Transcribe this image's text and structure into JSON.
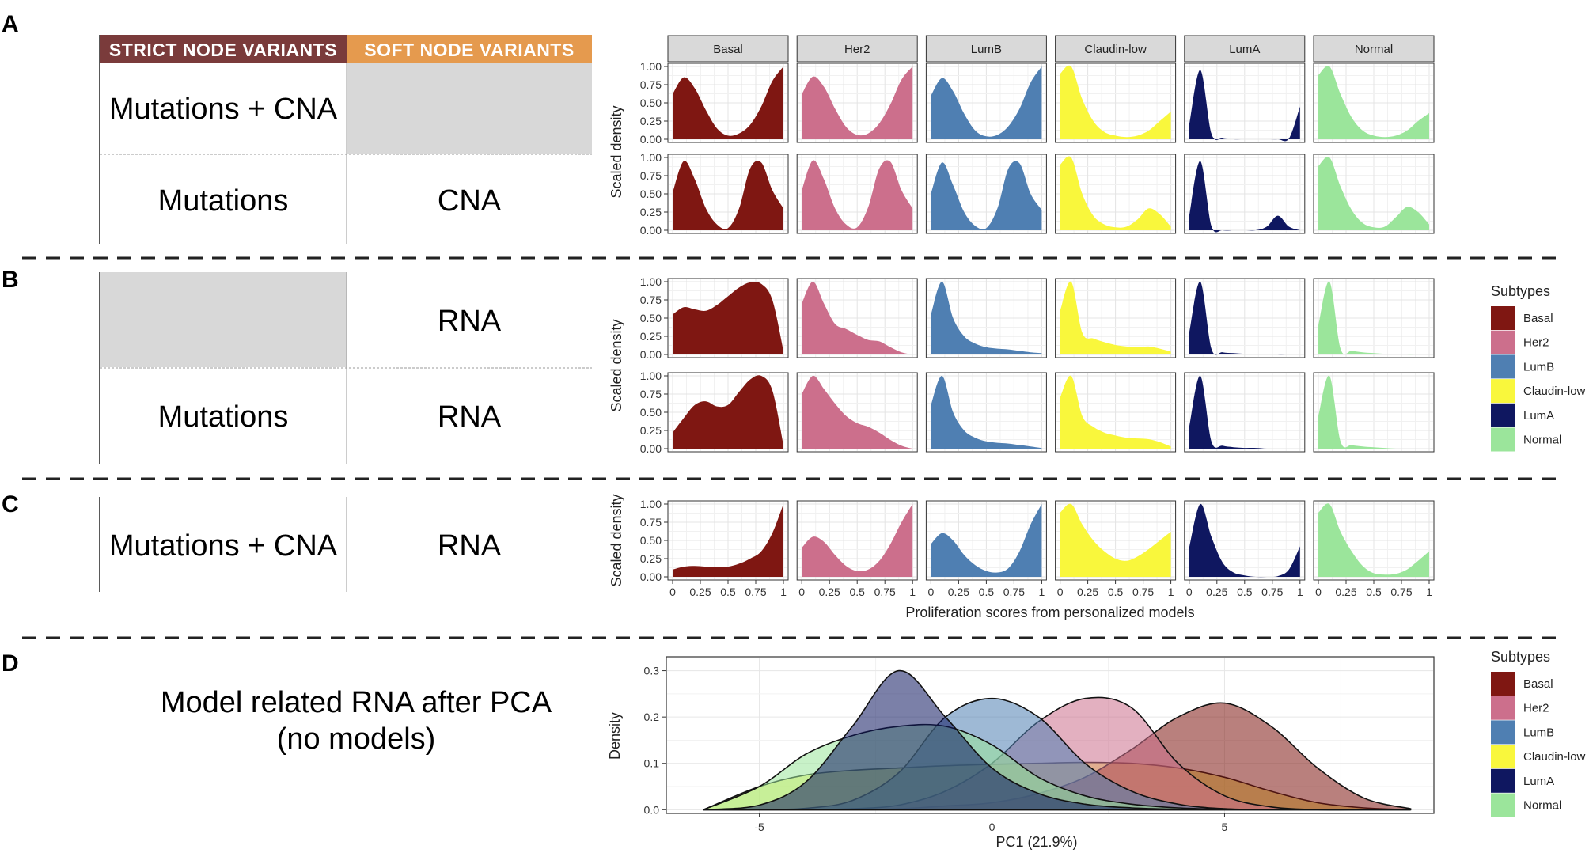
{
  "panels": {
    "A": "A",
    "B": "B",
    "C": "C",
    "D": "D"
  },
  "table": {
    "strict_header": "STRICT NODE VARIANTS",
    "soft_header": "SOFT NODE VARIANTS",
    "a_row1_strict": "Mutations + CNA",
    "a_row2_strict": "Mutations",
    "a_row2_soft": "CNA",
    "b_row1_soft": "RNA",
    "b_row2_strict": "Mutations",
    "b_row2_soft": "RNA",
    "c_row1_strict": "Mutations + CNA",
    "c_row1_soft": "RNA",
    "d_line1": "Model related RNA after PCA",
    "d_line2": "(no models)"
  },
  "colors": {
    "Basal": "#7f1712",
    "Her2": "#cc6f8c",
    "LumB": "#4f7fb2",
    "Claudin-low": "#f9f73c",
    "LumA": "#0f1760",
    "Normal": "#9be59b",
    "strict_header_bg": "#7a3b3b",
    "soft_header_bg": "#e59a4e",
    "gray_cell": "#d8d8d8"
  },
  "chart_data": [
    {
      "type": "area",
      "id": "facet-grid",
      "title": "",
      "subtypes": [
        "Basal",
        "Her2",
        "LumB",
        "Claudin-low",
        "LumA",
        "Normal"
      ],
      "ylabel": "Scaled density",
      "xlabel": "Proliferation scores from personalized models",
      "xlim": [
        0,
        1
      ],
      "ylim": [
        0,
        1
      ],
      "xticks": [
        "0",
        "0.25",
        "0.5",
        "0.75",
        "1"
      ],
      "yticks": [
        "0.00",
        "0.25",
        "0.50",
        "0.75",
        "1.00"
      ],
      "rows": [
        {
          "panel": "A",
          "x": [
            0,
            0.1,
            0.2,
            0.3,
            0.4,
            0.5,
            0.6,
            0.7,
            0.8,
            0.9,
            1.0
          ],
          "series": {
            "Basal": [
              0.62,
              0.85,
              0.7,
              0.4,
              0.15,
              0.05,
              0.08,
              0.2,
              0.45,
              0.8,
              1.0
            ],
            "Her2": [
              0.62,
              0.86,
              0.72,
              0.42,
              0.17,
              0.06,
              0.08,
              0.22,
              0.48,
              0.82,
              1.0
            ],
            "LumB": [
              0.6,
              0.84,
              0.66,
              0.35,
              0.12,
              0.04,
              0.06,
              0.18,
              0.42,
              0.78,
              1.0
            ],
            "Claudin-low": [
              0.9,
              1.0,
              0.55,
              0.25,
              0.1,
              0.05,
              0.03,
              0.05,
              0.12,
              0.25,
              0.38
            ],
            "LumA": [
              0.2,
              0.95,
              0.08,
              0.01,
              0.0,
              0.0,
              0.0,
              0.0,
              0.0,
              0.01,
              0.45
            ],
            "Normal": [
              0.88,
              1.0,
              0.62,
              0.3,
              0.12,
              0.05,
              0.03,
              0.05,
              0.12,
              0.25,
              0.36
            ]
          }
        },
        {
          "panel": "A",
          "x": [
            0,
            0.1,
            0.2,
            0.3,
            0.4,
            0.5,
            0.6,
            0.7,
            0.8,
            0.9,
            1.0
          ],
          "series": {
            "Basal": [
              0.52,
              0.95,
              0.7,
              0.3,
              0.08,
              0.03,
              0.3,
              0.85,
              0.93,
              0.55,
              0.3
            ],
            "Her2": [
              0.55,
              0.96,
              0.7,
              0.3,
              0.08,
              0.04,
              0.32,
              0.85,
              0.94,
              0.55,
              0.3
            ],
            "LumB": [
              0.5,
              0.93,
              0.62,
              0.25,
              0.06,
              0.03,
              0.3,
              0.85,
              0.92,
              0.5,
              0.28
            ],
            "Claudin-low": [
              0.9,
              1.0,
              0.5,
              0.2,
              0.08,
              0.04,
              0.05,
              0.15,
              0.3,
              0.22,
              0.05
            ],
            "LumA": [
              0.2,
              0.95,
              0.06,
              0.0,
              0.0,
              0.0,
              0.0,
              0.05,
              0.2,
              0.05,
              0.0
            ],
            "Normal": [
              0.88,
              1.0,
              0.6,
              0.28,
              0.1,
              0.04,
              0.05,
              0.18,
              0.32,
              0.25,
              0.08
            ]
          }
        },
        {
          "panel": "B",
          "x": [
            0,
            0.1,
            0.2,
            0.3,
            0.4,
            0.5,
            0.6,
            0.7,
            0.8,
            0.9,
            1.0
          ],
          "series": {
            "Basal": [
              0.55,
              0.65,
              0.62,
              0.6,
              0.68,
              0.8,
              0.92,
              0.99,
              0.97,
              0.75,
              0.05
            ],
            "Her2": [
              0.7,
              1.0,
              0.7,
              0.42,
              0.35,
              0.27,
              0.2,
              0.18,
              0.1,
              0.03,
              0.0
            ],
            "LumB": [
              0.55,
              1.0,
              0.5,
              0.25,
              0.15,
              0.1,
              0.08,
              0.07,
              0.05,
              0.03,
              0.02
            ],
            "Claudin-low": [
              0.6,
              1.0,
              0.3,
              0.22,
              0.17,
              0.13,
              0.11,
              0.1,
              0.11,
              0.08,
              0.04
            ],
            "LumA": [
              0.3,
              1.0,
              0.08,
              0.03,
              0.02,
              0.01,
              0.01,
              0.01,
              0.0,
              0.0,
              0.0
            ],
            "Normal": [
              0.4,
              1.0,
              0.08,
              0.05,
              0.03,
              0.02,
              0.01,
              0.01,
              0.0,
              0.0,
              0.0
            ]
          }
        },
        {
          "panel": "B",
          "x": [
            0,
            0.1,
            0.2,
            0.3,
            0.4,
            0.5,
            0.6,
            0.7,
            0.8,
            0.9,
            1.0
          ],
          "series": {
            "Basal": [
              0.22,
              0.42,
              0.6,
              0.65,
              0.58,
              0.6,
              0.78,
              0.95,
              1.0,
              0.8,
              0.05
            ],
            "Her2": [
              0.75,
              1.0,
              0.82,
              0.62,
              0.45,
              0.35,
              0.3,
              0.22,
              0.12,
              0.04,
              0.0
            ],
            "LumB": [
              0.6,
              1.0,
              0.5,
              0.25,
              0.15,
              0.1,
              0.08,
              0.07,
              0.05,
              0.03,
              0.01
            ],
            "Claudin-low": [
              0.7,
              1.0,
              0.45,
              0.3,
              0.22,
              0.18,
              0.15,
              0.14,
              0.13,
              0.09,
              0.03
            ],
            "LumA": [
              0.3,
              1.0,
              0.1,
              0.04,
              0.02,
              0.01,
              0.01,
              0.0,
              0.0,
              0.0,
              0.0
            ],
            "Normal": [
              0.45,
              1.0,
              0.1,
              0.05,
              0.03,
              0.02,
              0.01,
              0.0,
              0.0,
              0.0,
              0.0
            ]
          }
        },
        {
          "panel": "C",
          "x": [
            0,
            0.1,
            0.2,
            0.3,
            0.4,
            0.5,
            0.6,
            0.7,
            0.8,
            0.9,
            1.0
          ],
          "series": {
            "Basal": [
              0.1,
              0.14,
              0.15,
              0.14,
              0.13,
              0.14,
              0.18,
              0.25,
              0.35,
              0.6,
              1.0
            ],
            "Her2": [
              0.4,
              0.55,
              0.48,
              0.3,
              0.15,
              0.08,
              0.1,
              0.22,
              0.45,
              0.75,
              1.0
            ],
            "LumB": [
              0.45,
              0.6,
              0.5,
              0.3,
              0.16,
              0.08,
              0.06,
              0.12,
              0.35,
              0.72,
              1.0
            ],
            "Claudin-low": [
              0.88,
              1.0,
              0.72,
              0.5,
              0.35,
              0.25,
              0.22,
              0.28,
              0.38,
              0.5,
              0.62
            ],
            "LumA": [
              0.4,
              1.0,
              0.55,
              0.2,
              0.06,
              0.02,
              0.0,
              0.0,
              0.01,
              0.1,
              0.42
            ],
            "Normal": [
              0.88,
              1.0,
              0.62,
              0.35,
              0.15,
              0.05,
              0.03,
              0.04,
              0.1,
              0.22,
              0.35
            ]
          }
        }
      ]
    },
    {
      "type": "area",
      "id": "pca-density",
      "title": "",
      "xlabel": "PC1 (21.9%)",
      "ylabel": "Density",
      "xlim": [
        -7,
        9.5
      ],
      "ylim": [
        -0.008,
        0.33
      ],
      "xticks": [
        -5,
        0,
        5
      ],
      "xtick_labels": [
        "-5",
        "0",
        "5"
      ],
      "yticks": [
        0,
        0.1,
        0.2,
        0.3
      ],
      "ytick_labels": [
        "0.0",
        "0.1",
        "0.2",
        "0.3"
      ],
      "x": [
        -6.2,
        -5,
        -4,
        -3,
        -2,
        -1,
        0,
        1,
        2,
        3,
        4,
        5,
        6,
        7,
        8,
        9
      ],
      "series": [
        {
          "name": "Claudin-low",
          "values": [
            0.0,
            0.05,
            0.075,
            0.085,
            0.09,
            0.095,
            0.098,
            0.1,
            0.102,
            0.1,
            0.09,
            0.07,
            0.04,
            0.015,
            0.004,
            0.0
          ]
        },
        {
          "name": "Basal",
          "values": [
            0.0,
            0.0,
            0.0,
            0.0,
            0.002,
            0.008,
            0.015,
            0.035,
            0.07,
            0.13,
            0.2,
            0.23,
            0.18,
            0.09,
            0.025,
            0.002
          ]
        },
        {
          "name": "Her2",
          "values": [
            0.0,
            0.0,
            0.0,
            0.002,
            0.01,
            0.04,
            0.1,
            0.19,
            0.24,
            0.22,
            0.1,
            0.03,
            0.006,
            0.0,
            0.0,
            0.0
          ]
        },
        {
          "name": "LumB",
          "values": [
            0.0,
            0.0,
            0.003,
            0.02,
            0.08,
            0.2,
            0.24,
            0.2,
            0.1,
            0.04,
            0.012,
            0.002,
            0.0,
            0.0,
            0.0,
            0.0
          ]
        },
        {
          "name": "Normal",
          "values": [
            0.0,
            0.05,
            0.12,
            0.16,
            0.18,
            0.18,
            0.14,
            0.07,
            0.03,
            0.012,
            0.004,
            0.001,
            0.0,
            0.0,
            0.0,
            0.0
          ]
        },
        {
          "name": "LumA",
          "values": [
            0.0,
            0.01,
            0.06,
            0.18,
            0.3,
            0.2,
            0.09,
            0.035,
            0.012,
            0.004,
            0.001,
            0.0,
            0.0,
            0.0,
            0.0,
            0.0
          ]
        }
      ]
    }
  ],
  "legend": {
    "title": "Subtypes",
    "items": [
      "Basal",
      "Her2",
      "LumB",
      "Claudin-low",
      "LumA",
      "Normal"
    ]
  }
}
